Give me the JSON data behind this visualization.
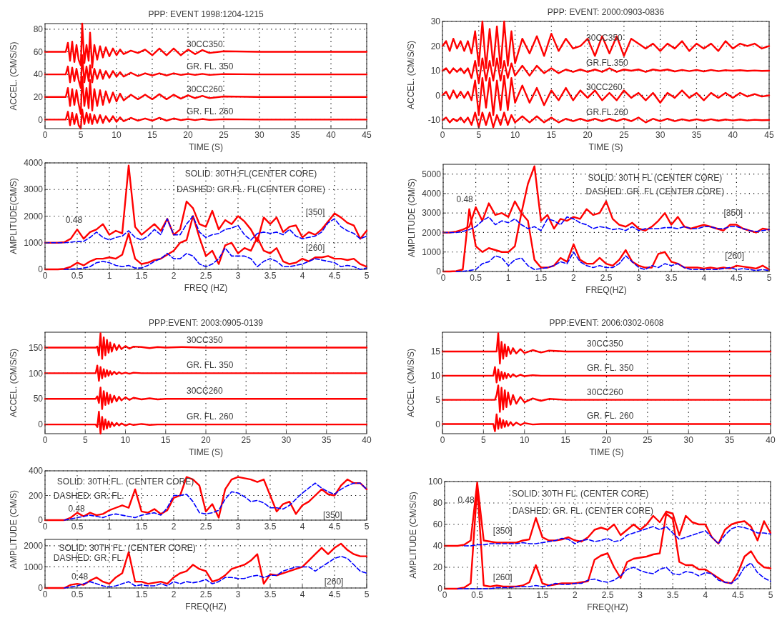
{
  "chart_data": [
    {
      "type": "line",
      "title": "PPP: EVENT 1998:1204-1215",
      "xlabel": "TIME (S)",
      "ylabel": "ACCEL. (CM/S/S)",
      "xlim": [
        0,
        45
      ],
      "xticks": [
        0,
        5,
        10,
        15,
        20,
        25,
        30,
        35,
        40,
        45
      ],
      "ylim": [
        -8,
        85
      ],
      "yticks": [
        0,
        20,
        40,
        60,
        80
      ],
      "grid": true,
      "x": [
        0,
        2.9,
        3.2,
        3.5,
        3.8,
        4.1,
        4.4,
        4.7,
        5.0,
        5.2,
        5.5,
        5.8,
        6.1,
        6.3,
        6.6,
        6.9,
        7.3,
        7.7,
        8.1,
        8.5,
        9,
        9.5,
        10,
        10.5,
        11,
        12,
        13,
        14,
        15,
        16,
        17,
        18,
        19,
        20,
        21,
        22,
        23,
        25,
        30,
        45
      ],
      "series": [
        {
          "name": "30CC350",
          "color": "#ff0000",
          "values": [
            60,
            60,
            68,
            52,
            69,
            51,
            66,
            53,
            48,
            85,
            50,
            66,
            52,
            77,
            46,
            66,
            53,
            65,
            55,
            64,
            56,
            63,
            57,
            62,
            58,
            61,
            59,
            62,
            57,
            63,
            57,
            63,
            57,
            62,
            58,
            61.5,
            59,
            60.5,
            60,
            60
          ]
        },
        {
          "name": "GR. FL. 350",
          "color": "#ff0000",
          "values": [
            40,
            40,
            47,
            33,
            46,
            34,
            45,
            35,
            28,
            57,
            33,
            47,
            34,
            48,
            33,
            45,
            36,
            44,
            36,
            43,
            37,
            43,
            38,
            42,
            38,
            41.5,
            38.5,
            41,
            39,
            41,
            39,
            41,
            39.5,
            40.5,
            39.5,
            40.5,
            39.5,
            40.3,
            40,
            40
          ]
        },
        {
          "name": "30CC260",
          "color": "#ff0000",
          "values": [
            20,
            20,
            28,
            12,
            27,
            13,
            26,
            14,
            5,
            38,
            12,
            28,
            10,
            35,
            8,
            27,
            12,
            26,
            13,
            25,
            15,
            24,
            16,
            23,
            17,
            22,
            18,
            22,
            18,
            22.5,
            18,
            22,
            18.5,
            21.5,
            19,
            21,
            19,
            20.5,
            20,
            20
          ]
        },
        {
          "name": "GR. FL. 260",
          "color": "#ff0000",
          "values": [
            0,
            0,
            7,
            -5,
            6,
            -4,
            5,
            -5,
            -8,
            9,
            -4,
            6,
            -3,
            5,
            -4,
            4,
            -3,
            4,
            -3,
            3,
            -2,
            3,
            -2,
            2,
            -1.5,
            1.5,
            -1,
            1,
            -1,
            1.5,
            -1,
            1,
            -0.5,
            0.5,
            -0.5,
            0.5,
            -0.3,
            0.3,
            0,
            0
          ]
        }
      ]
    },
    {
      "type": "line",
      "title": "PPP: EVENT: 2000:0903-0836",
      "xlabel": "TIME (S)",
      "ylabel": "ACCEL. (CM/S/S)",
      "xlim": [
        0,
        45
      ],
      "xticks": [
        0,
        5,
        10,
        15,
        20,
        25,
        30,
        35,
        40,
        45
      ],
      "ylim": [
        -13.5,
        30
      ],
      "yticks": [
        -10,
        0,
        10,
        20,
        30
      ],
      "grid": true,
      "x": [
        0,
        0.5,
        1,
        1.5,
        2,
        2.5,
        3,
        3.5,
        4,
        4.5,
        5,
        5.5,
        6,
        6.5,
        7,
        7.5,
        8,
        8.5,
        9,
        9.5,
        10,
        11,
        12,
        13,
        14,
        15,
        16,
        17,
        18,
        19,
        20,
        21,
        22,
        23,
        24,
        25,
        26,
        27,
        28,
        29,
        30,
        31,
        32,
        33,
        34,
        35,
        36,
        37,
        38,
        39,
        40,
        41,
        42,
        43,
        44,
        45
      ],
      "series": [
        {
          "name": "30CC350",
          "color": "#ff0000",
          "values": [
            20,
            22,
            18,
            23,
            19,
            22,
            18,
            22,
            17,
            26,
            12,
            30,
            11,
            27,
            12,
            28,
            11,
            30,
            12,
            26,
            13,
            23,
            17,
            24,
            16,
            25,
            18,
            23,
            19,
            20,
            23,
            16,
            24,
            17,
            24,
            16,
            23,
            21,
            19,
            21,
            18,
            21,
            19,
            22,
            18,
            21,
            19,
            21,
            18,
            22,
            19,
            21,
            20,
            21,
            19,
            20
          ]
        },
        {
          "name": "GR.FL.350",
          "color": "#ff0000",
          "values": [
            10,
            11,
            9,
            11,
            9.5,
            11,
            9,
            11,
            7,
            14,
            5,
            15,
            6,
            14,
            6,
            15,
            6,
            14,
            7,
            13,
            8,
            12,
            8,
            12,
            9,
            11,
            9,
            10.5,
            9.5,
            10.5,
            9.5,
            10.5,
            9.5,
            11,
            9.5,
            10.5,
            10,
            10.5,
            9.5,
            10.5,
            10,
            10.5,
            9.7,
            10.3,
            9.8,
            10.3,
            9.7,
            10.3,
            9.8,
            10.2,
            10,
            10.2,
            9.9,
            10.1,
            9.9,
            10
          ]
        },
        {
          "name": "30CC260",
          "color": "#ff0000",
          "values": [
            0,
            1.5,
            -1.5,
            2,
            -1,
            1.5,
            -1,
            1.5,
            -2,
            6,
            -8,
            7,
            -5,
            7,
            -8,
            6,
            -6,
            8,
            -6,
            7,
            -3,
            4,
            -3,
            3,
            -4,
            2,
            -2,
            3,
            -2,
            2,
            -1,
            2,
            -2,
            1,
            -2,
            2,
            -1,
            1,
            -2,
            1,
            -3,
            1,
            -1,
            2,
            -1,
            1,
            -2,
            1,
            -1,
            1,
            -1,
            1,
            -0.5,
            0.5,
            -0.5,
            0
          ]
        },
        {
          "name": "GR.FL.260",
          "color": "#ff0000",
          "values": [
            -10,
            -9,
            -11,
            -9.5,
            -10.5,
            -9,
            -11,
            -9,
            -12,
            -7,
            -13,
            -7,
            -12,
            -7,
            -13,
            -8,
            -12,
            -7,
            -12,
            -8,
            -11,
            -8.5,
            -11,
            -8.5,
            -11,
            -9,
            -11,
            -9.5,
            -10.5,
            -9.5,
            -10.5,
            -9.5,
            -10.5,
            -9.5,
            -10.5,
            -9.5,
            -10.5,
            -9,
            -11,
            -9.5,
            -10.5,
            -9.5,
            -10.5,
            -9.7,
            -10.3,
            -9.7,
            -10.3,
            -9.7,
            -10.3,
            -9.8,
            -10.2,
            -9.8,
            -10.2,
            -9.9,
            -10.1,
            -10
          ]
        }
      ]
    },
    {
      "type": "line",
      "xlabel": "FREQ (HZ)",
      "ylabel": "AMPLITUDE(CM/S)",
      "xlim": [
        0,
        5
      ],
      "xticks": [
        0,
        0.5,
        1,
        1.5,
        2,
        2.5,
        3,
        3.5,
        4,
        4.5,
        5
      ],
      "ylim": [
        0,
        4000
      ],
      "yticks": [
        0,
        1000,
        2000,
        3000,
        4000
      ],
      "grid": true,
      "annotations": [
        "SOLID: 30TH FL(CENTER CORE)",
        "DASHED: GR.FL. FL(CENTER CORE)",
        "0.48",
        "[350]",
        "[260]"
      ],
      "x": [
        0,
        0.1,
        0.2,
        0.3,
        0.4,
        0.5,
        0.6,
        0.7,
        0.8,
        0.9,
        1,
        1.1,
        1.2,
        1.3,
        1.4,
        1.5,
        1.6,
        1.7,
        1.8,
        1.9,
        2,
        2.1,
        2.2,
        2.3,
        2.4,
        2.5,
        2.6,
        2.7,
        2.8,
        2.9,
        3,
        3.1,
        3.2,
        3.3,
        3.4,
        3.5,
        3.6,
        3.7,
        3.8,
        3.9,
        4,
        4.1,
        4.2,
        4.3,
        4.4,
        4.5,
        4.6,
        4.7,
        4.8,
        4.9,
        5
      ],
      "series": [
        {
          "color": "#ff0000",
          "line_style": "solid",
          "values": [
            1000,
            1000,
            1000,
            1020,
            1150,
            1500,
            1150,
            1400,
            1500,
            1700,
            1300,
            1450,
            1350,
            3900,
            1600,
            1300,
            1500,
            1700,
            1450,
            1900,
            1300,
            1500,
            2550,
            2300,
            1700,
            1600,
            2200,
            1500,
            1850,
            1700,
            2000,
            1800,
            1500,
            1050,
            1950,
            1700,
            1950,
            1400,
            1600,
            1650,
            1200,
            1400,
            1300,
            1500,
            1800,
            2100,
            1950,
            1750,
            1650,
            1150,
            1450
          ]
        },
        {
          "color": "#0000ff",
          "line_style": "dashed",
          "values": [
            1000,
            1000,
            1000,
            1000,
            1020,
            1050,
            1050,
            1200,
            1400,
            1200,
            1100,
            1200,
            1250,
            1450,
            1200,
            1100,
            1250,
            1500,
            1300,
            1900,
            1300,
            1300,
            1700,
            2000,
            1400,
            1200,
            1300,
            1350,
            1500,
            1550,
            1650,
            1300,
            1100,
            1350,
            1400,
            1350,
            1400,
            1300,
            1500,
            1250,
            1150,
            1200,
            1250,
            1400,
            1750,
            1900,
            1600,
            1450,
            1350,
            1150,
            1250
          ]
        },
        {
          "color": "#ff0000",
          "line_style": "solid",
          "values": [
            0,
            0,
            0,
            20,
            100,
            250,
            150,
            300,
            400,
            400,
            450,
            400,
            550,
            1350,
            400,
            200,
            250,
            350,
            400,
            550,
            700,
            1000,
            1100,
            2000,
            1200,
            500,
            700,
            200,
            900,
            1000,
            600,
            800,
            700,
            1200,
            700,
            600,
            800,
            300,
            200,
            250,
            400,
            300,
            450,
            450,
            500,
            400,
            400,
            350,
            400,
            200,
            100
          ]
        },
        {
          "color": "#0000ff",
          "line_style": "dashed",
          "values": [
            null,
            null,
            null,
            0,
            10,
            20,
            50,
            100,
            250,
            300,
            250,
            150,
            100,
            150,
            50,
            50,
            150,
            300,
            400,
            600,
            400,
            400,
            600,
            500,
            200,
            100,
            200,
            400,
            800,
            500,
            500,
            500,
            400,
            100,
            300,
            400,
            300,
            100,
            100,
            150,
            200,
            300,
            400,
            350,
            300,
            250,
            100,
            150,
            100,
            0,
            50
          ]
        }
      ]
    },
    {
      "type": "line",
      "xlabel": "FREQ(HZ)",
      "ylabel": "AMPLITUDE (CM/S)",
      "xlim": [
        0,
        5
      ],
      "xticks": [
        0,
        0.5,
        1,
        1.5,
        2,
        2.5,
        3,
        3.5,
        4,
        4.5,
        5
      ],
      "ylim": [
        0,
        5500
      ],
      "yticks": [
        0,
        1000,
        2000,
        3000,
        4000,
        5000
      ],
      "grid": true,
      "annotations": [
        "SOLID: 30TH FL (CENTER CORE)",
        "DASHED: GR. FL (CENTER CORE)",
        "0.48",
        "[350]",
        "[260]"
      ],
      "x": [
        0,
        0.1,
        0.2,
        0.3,
        0.4,
        0.5,
        0.6,
        0.7,
        0.8,
        0.9,
        1,
        1.1,
        1.2,
        1.3,
        1.4,
        1.5,
        1.6,
        1.7,
        1.8,
        1.9,
        2,
        2.1,
        2.2,
        2.3,
        2.4,
        2.5,
        2.6,
        2.7,
        2.8,
        2.9,
        3,
        3.1,
        3.2,
        3.3,
        3.4,
        3.5,
        3.6,
        3.7,
        3.8,
        3.9,
        4,
        4.1,
        4.2,
        4.3,
        4.4,
        4.5,
        4.6,
        4.7,
        4.8,
        4.9,
        5
      ],
      "series": [
        {
          "color": "#ff0000",
          "line_style": "solid",
          "values": [
            2000,
            2000,
            2050,
            2150,
            2300,
            3300,
            2600,
            3500,
            2900,
            3000,
            2800,
            3600,
            3000,
            4500,
            5400,
            2600,
            2900,
            2200,
            2700,
            2600,
            2800,
            2700,
            3200,
            2900,
            3000,
            3600,
            2700,
            2400,
            2300,
            2500,
            2200,
            2100,
            2300,
            2600,
            3000,
            2400,
            2800,
            2300,
            2200,
            2300,
            2400,
            2300,
            2200,
            2100,
            2400,
            2400,
            2200,
            2100,
            2000,
            2200,
            2150
          ]
        },
        {
          "color": "#0000ff",
          "line_style": "dashed",
          "values": [
            2000,
            2000,
            2000,
            2050,
            2150,
            2300,
            2600,
            2800,
            2400,
            2600,
            2500,
            2700,
            2400,
            2200,
            2300,
            2100,
            2700,
            2600,
            2400,
            2800,
            2700,
            2500,
            2400,
            2200,
            2300,
            2250,
            2150,
            2200,
            2100,
            2300,
            2100,
            2200,
            2200,
            2200,
            2250,
            2250,
            2200,
            2300,
            2200,
            2200,
            2300,
            2300,
            2200,
            2200,
            2300,
            2300,
            2200,
            2100,
            2050,
            2100,
            2150
          ]
        },
        {
          "color": "#ff0000",
          "line_style": "solid",
          "values": [
            0,
            0,
            20,
            100,
            3200,
            1300,
            1000,
            1200,
            1100,
            1000,
            1000,
            1300,
            3000,
            2600,
            600,
            200,
            200,
            300,
            700,
            500,
            1400,
            600,
            400,
            400,
            700,
            400,
            300,
            600,
            1100,
            500,
            300,
            200,
            200,
            900,
            1000,
            500,
            400,
            200,
            200,
            200,
            150,
            200,
            150,
            200,
            150,
            300,
            250,
            200,
            150,
            300,
            100
          ]
        },
        {
          "color": "#0000ff",
          "line_style": "dashed",
          "values": [
            null,
            null,
            0,
            10,
            50,
            100,
            400,
            500,
            800,
            700,
            300,
            600,
            700,
            300,
            100,
            150,
            200,
            300,
            500,
            400,
            1000,
            500,
            300,
            200,
            300,
            200,
            200,
            400,
            800,
            500,
            200,
            100,
            300,
            200,
            400,
            300,
            400,
            200,
            100,
            100,
            100,
            100,
            100,
            150,
            200,
            100,
            150,
            100,
            50,
            100,
            50
          ]
        }
      ]
    },
    {
      "type": "line",
      "title": "PPP:EVENT: 2003:0905-0139",
      "xlabel": "TIME (S)",
      "ylabel": "ACCEL. (CM/S/S)",
      "xlim": [
        0,
        40
      ],
      "xticks": [
        0,
        5,
        10,
        15,
        20,
        25,
        30,
        35,
        40
      ],
      "ylim": [
        -18,
        180
      ],
      "yticks": [
        0,
        50,
        100,
        150
      ],
      "grid": true,
      "x": [
        0,
        6.3,
        6.5,
        6.7,
        6.9,
        7.1,
        7.3,
        7.5,
        7.7,
        7.9,
        8.1,
        8.3,
        8.6,
        8.9,
        9.2,
        9.5,
        10,
        10.5,
        11,
        12,
        13,
        14,
        15,
        17,
        20,
        25,
        30,
        40
      ],
      "series": [
        {
          "name": "30CC350",
          "color": "#ff0000",
          "values": [
            150,
            150,
            152,
            135,
            178,
            128,
            170,
            135,
            165,
            140,
            160,
            142,
            157,
            145,
            155,
            147,
            153,
            148,
            152,
            151,
            149,
            151,
            150,
            151,
            150,
            150,
            150,
            150
          ]
        },
        {
          "name": "GR. FL. 350",
          "color": "#ff0000",
          "values": [
            100,
            100,
            115,
            85,
            112,
            90,
            108,
            93,
            106,
            95,
            104,
            97,
            103,
            98,
            102,
            99,
            101,
            99,
            101,
            100,
            100,
            100,
            100,
            100,
            100,
            100,
            100,
            100
          ]
        },
        {
          "name": "30CC260",
          "color": "#ff0000",
          "values": [
            50,
            50,
            55,
            42,
            72,
            30,
            65,
            38,
            62,
            40,
            58,
            43,
            56,
            45,
            54,
            47,
            53,
            48,
            52,
            49,
            51,
            49,
            50,
            50,
            50,
            50,
            50,
            50
          ]
        },
        {
          "name": "GR. FL. 260",
          "color": "#ff0000",
          "values": [
            0,
            0,
            -5,
            25,
            -18,
            15,
            -10,
            10,
            -8,
            6,
            -5,
            4,
            -3,
            3,
            -2,
            2,
            -2,
            1,
            -1,
            1,
            -1,
            0,
            0,
            0,
            0,
            0,
            0,
            0
          ]
        }
      ]
    },
    {
      "type": "line",
      "title": "PPP:EVENT: 2006:0302-0608",
      "xlabel": "TIME (S)",
      "ylabel": "ACCEL. (CM/S/S)",
      "xlim": [
        0,
        40
      ],
      "xticks": [
        0,
        5,
        10,
        15,
        20,
        25,
        30,
        35,
        40
      ],
      "ylim": [
        -2,
        19
      ],
      "yticks": [
        0,
        5,
        10,
        15
      ],
      "grid": true,
      "x": [
        0,
        6.2,
        6.4,
        6.6,
        6.8,
        7.0,
        7.2,
        7.4,
        7.6,
        7.8,
        8.0,
        8.3,
        8.6,
        9,
        9.5,
        10,
        11,
        12,
        13,
        15,
        18,
        22,
        30,
        40
      ],
      "series": [
        {
          "name": "30CC350",
          "color": "#ff0000",
          "values": [
            15,
            15,
            15,
            15,
            18.8,
            12.5,
            17,
            13.5,
            16.5,
            14,
            16,
            14.5,
            15.7,
            14.6,
            15.5,
            14.7,
            15.3,
            14.8,
            15.2,
            15,
            15,
            15,
            15,
            15
          ]
        },
        {
          "name": "GR. FL. 350",
          "color": "#ff0000",
          "values": [
            10,
            10,
            11.8,
            8.6,
            11.3,
            9,
            10.8,
            9.3,
            10.6,
            9.5,
            10.4,
            9.7,
            10.3,
            9.8,
            10.2,
            9.9,
            10.1,
            10,
            10,
            10,
            10,
            10,
            10,
            10
          ]
        },
        {
          "name": "30CC260",
          "color": "#ff0000",
          "values": [
            5,
            5,
            5,
            6,
            8,
            2.5,
            7.5,
            3,
            7,
            3.5,
            6.5,
            4,
            6,
            4.2,
            5.6,
            4.5,
            5.3,
            4.8,
            5.2,
            5,
            5,
            5,
            5,
            5
          ]
        },
        {
          "name": "GR. FL. 260",
          "color": "#ff0000",
          "values": [
            0,
            0,
            -1.5,
            2,
            -1,
            1.2,
            -0.8,
            0.8,
            -0.6,
            0.6,
            -0.4,
            0.4,
            -0.3,
            0.3,
            -0.2,
            0.2,
            -0.1,
            0,
            0,
            0,
            0,
            0,
            0,
            0
          ]
        }
      ]
    },
    {
      "type": "line",
      "ylabel": "AMPLITUDE (CM/S)",
      "xlim": [
        0,
        5
      ],
      "xticks": [
        0,
        0.5,
        1,
        1.5,
        2,
        2.5,
        3,
        3.5,
        4,
        4.5,
        5
      ],
      "ylim": [
        0,
        400
      ],
      "yticks": [
        0,
        200,
        400
      ],
      "grid": true,
      "annotations": [
        "SOLID: 30TH FL. (CENTER CORE)",
        "DASHED: GR. FL.",
        "0.48",
        "[350]"
      ],
      "x": [
        0,
        0.1,
        0.2,
        0.3,
        0.4,
        0.5,
        0.6,
        0.7,
        0.8,
        0.9,
        1,
        1.1,
        1.2,
        1.3,
        1.4,
        1.5,
        1.6,
        1.7,
        1.8,
        1.9,
        2,
        2.1,
        2.2,
        2.3,
        2.4,
        2.5,
        2.6,
        2.7,
        2.8,
        2.9,
        3,
        3.1,
        3.2,
        3.3,
        3.4,
        3.5,
        3.6,
        3.7,
        3.8,
        3.9,
        4,
        4.1,
        4.2,
        4.3,
        4.4,
        4.5,
        4.6,
        4.7,
        4.8,
        4.9,
        5
      ],
      "series": [
        {
          "color": "#ff0000",
          "line_style": "solid",
          "values": [
            0,
            0,
            0,
            0,
            20,
            60,
            30,
            60,
            40,
            50,
            80,
            100,
            120,
            100,
            250,
            70,
            60,
            90,
            50,
            80,
            180,
            200,
            350,
            330,
            280,
            70,
            130,
            20,
            250,
            330,
            350,
            340,
            330,
            310,
            330,
            200,
            70,
            130,
            150,
            50,
            120,
            150,
            200,
            250,
            210,
            200,
            280,
            330,
            300,
            300,
            250
          ]
        },
        {
          "color": "#0000ff",
          "line_style": "dashed",
          "values": [
            null,
            null,
            null,
            0,
            10,
            20,
            30,
            40,
            30,
            20,
            40,
            50,
            40,
            30,
            20,
            40,
            50,
            60,
            40,
            100,
            200,
            200,
            210,
            150,
            60,
            50,
            60,
            80,
            170,
            230,
            220,
            190,
            150,
            160,
            140,
            100,
            100,
            90,
            120,
            170,
            220,
            260,
            300,
            260,
            230,
            210,
            250,
            280,
            300,
            300,
            250
          ]
        }
      ]
    },
    {
      "type": "line",
      "xlabel": "FREQ(HZ)",
      "xlim": [
        0,
        5
      ],
      "xticks": [
        0,
        0.5,
        1,
        1.5,
        2,
        2.5,
        3,
        3.5,
        4,
        4.5,
        5
      ],
      "ylim": [
        0,
        2300
      ],
      "yticks": [
        0,
        1000,
        2000
      ],
      "grid": true,
      "annotations": [
        "SOLID: 30TH FL. (CENTER CORE)",
        "DASHED: GR. FL.",
        "0.48",
        "[260]"
      ],
      "x": [
        0,
        0.1,
        0.2,
        0.3,
        0.4,
        0.5,
        0.6,
        0.7,
        0.8,
        0.9,
        1,
        1.1,
        1.2,
        1.3,
        1.4,
        1.5,
        1.6,
        1.7,
        1.8,
        1.9,
        2,
        2.1,
        2.2,
        2.3,
        2.4,
        2.5,
        2.6,
        2.7,
        2.8,
        2.9,
        3,
        3.1,
        3.2,
        3.3,
        3.4,
        3.5,
        3.6,
        3.7,
        3.8,
        3.9,
        4,
        4.1,
        4.2,
        4.3,
        4.4,
        4.5,
        4.6,
        4.7,
        4.8,
        4.9,
        5
      ],
      "series": [
        {
          "color": "#ff0000",
          "line_style": "solid",
          "values": [
            0,
            0,
            0,
            0,
            150,
            200,
            150,
            350,
            500,
            300,
            200,
            500,
            700,
            1700,
            300,
            300,
            200,
            250,
            300,
            200,
            500,
            700,
            800,
            1100,
            900,
            800,
            300,
            400,
            600,
            900,
            1000,
            1100,
            1300,
            1600,
            200,
            650,
            600,
            700,
            800,
            900,
            1000,
            1300,
            1600,
            1900,
            1600,
            1900,
            2100,
            1800,
            1600,
            1500,
            1500
          ]
        },
        {
          "color": "#0000ff",
          "line_style": "dashed",
          "values": [
            null,
            null,
            null,
            0,
            50,
            100,
            200,
            300,
            200,
            100,
            50,
            100,
            200,
            300,
            100,
            150,
            100,
            100,
            200,
            100,
            300,
            200,
            300,
            250,
            300,
            400,
            200,
            300,
            500,
            500,
            450,
            450,
            550,
            600,
            500,
            600,
            600,
            800,
            900,
            1000,
            1000,
            1000,
            800,
            1000,
            1200,
            1400,
            1500,
            1400,
            1100,
            800,
            700
          ]
        }
      ]
    },
    {
      "type": "line",
      "xlabel": "FREQ(HZ)",
      "ylabel": "AMPLITUDE (CM/S/S)",
      "xlim": [
        0,
        5
      ],
      "xticks": [
        0,
        0.5,
        1,
        1.5,
        2,
        2.5,
        3,
        3.5,
        4,
        4.5,
        5
      ],
      "ylim": [
        0,
        100
      ],
      "yticks": [
        0,
        20,
        40,
        60,
        80,
        100
      ],
      "grid": true,
      "annotations": [
        "SOLID: 30TH FL. (CENTER CORE)",
        "DASHED: GR. FL. (CENTER CORE)",
        "0.48",
        "[350]",
        "[260]"
      ],
      "x": [
        0,
        0.1,
        0.2,
        0.3,
        0.4,
        0.5,
        0.6,
        0.7,
        0.8,
        0.9,
        1,
        1.1,
        1.2,
        1.3,
        1.4,
        1.5,
        1.6,
        1.7,
        1.8,
        1.9,
        2,
        2.1,
        2.2,
        2.3,
        2.4,
        2.5,
        2.6,
        2.7,
        2.8,
        2.9,
        3,
        3.1,
        3.2,
        3.3,
        3.4,
        3.5,
        3.6,
        3.7,
        3.8,
        3.9,
        4,
        4.1,
        4.2,
        4.3,
        4.4,
        4.5,
        4.6,
        4.7,
        4.8,
        4.9,
        5
      ],
      "series": [
        {
          "color": "#ff0000",
          "line_style": "solid",
          "values": [
            40,
            40,
            40,
            41,
            45,
            99,
            45,
            44,
            43,
            43,
            43,
            43,
            45,
            46,
            66,
            48,
            45,
            45,
            46,
            48,
            45,
            44,
            48,
            55,
            57,
            55,
            60,
            50,
            55,
            60,
            55,
            60,
            68,
            62,
            72,
            70,
            50,
            68,
            62,
            60,
            60,
            48,
            42,
            55,
            60,
            62,
            63,
            58,
            45,
            63,
            52
          ]
        },
        {
          "color": "#0000ff",
          "line_style": "dashed",
          "values": [
            null,
            null,
            null,
            40,
            40,
            41,
            41,
            42,
            42,
            42,
            42,
            42,
            43,
            42,
            42,
            43,
            44,
            45,
            47,
            46,
            42,
            45,
            46,
            44,
            45,
            47,
            44,
            45,
            50,
            52,
            54,
            56,
            58,
            55,
            58,
            52,
            46,
            48,
            50,
            52,
            54,
            48,
            42,
            50,
            56,
            58,
            57,
            55,
            52,
            52,
            51
          ]
        },
        {
          "color": "#ff0000",
          "line_style": "solid",
          "values": [
            0,
            0,
            0,
            1,
            5,
            95,
            3,
            2,
            3,
            2,
            2,
            2,
            3,
            6,
            22,
            5,
            3,
            4,
            5,
            5,
            5,
            6,
            7,
            27,
            31,
            33,
            20,
            10,
            25,
            28,
            29,
            30,
            32,
            33,
            70,
            65,
            25,
            22,
            22,
            18,
            18,
            14,
            10,
            6,
            5,
            15,
            30,
            35,
            25,
            20,
            19
          ]
        },
        {
          "color": "#0000ff",
          "line_style": "dashed",
          "values": [
            null,
            null,
            0,
            0,
            0,
            0,
            0,
            0,
            1,
            1,
            1,
            2,
            2,
            2,
            3,
            2,
            3,
            5,
            4,
            4,
            5,
            5,
            8,
            9,
            7,
            6,
            8,
            12,
            18,
            20,
            17,
            15,
            14,
            18,
            20,
            14,
            13,
            16,
            15,
            12,
            15,
            14,
            8,
            6,
            5,
            10,
            20,
            24,
            15,
            10,
            7
          ]
        }
      ]
    }
  ]
}
